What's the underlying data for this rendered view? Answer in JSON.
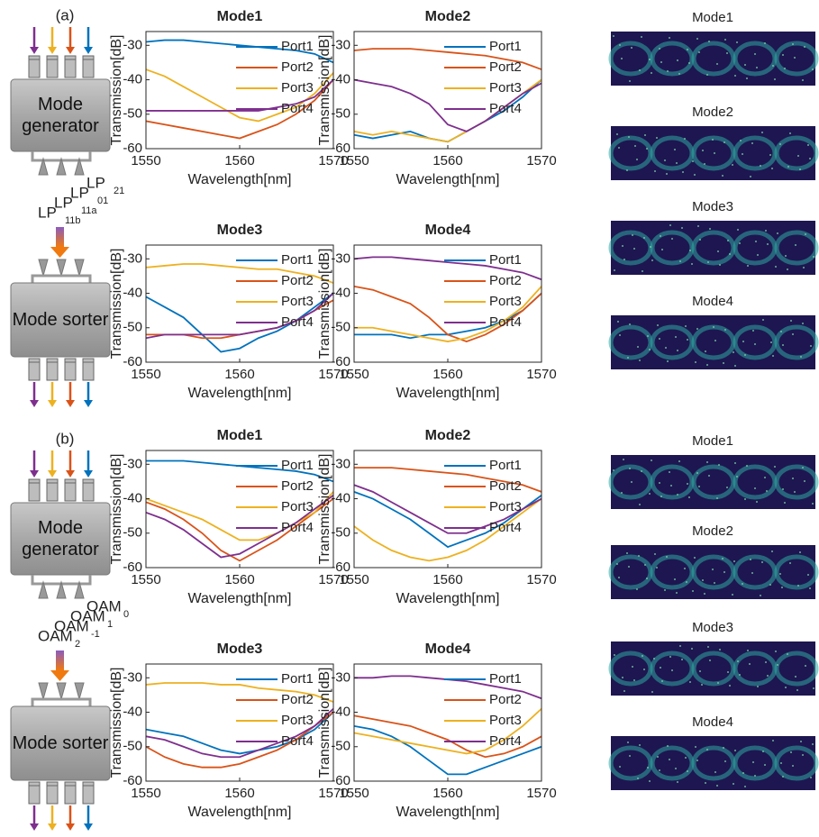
{
  "panel_labels": [
    "(a)",
    "(b)"
  ],
  "diagram": {
    "generator": "Mode generator",
    "sorter": "Mode sorter",
    "mode_labels": [
      [
        {
          "text": "LP",
          "sub": "21",
          "color": "#0072bd"
        },
        {
          "text": "LP",
          "sub": "01",
          "color": "#d95319"
        },
        {
          "text": "LP",
          "sub": "11a",
          "color": "#edb120"
        },
        {
          "text": "LP",
          "sub": "11b",
          "color": "#7e2f8e"
        }
      ],
      [
        {
          "text": "OAM",
          "sub": "0",
          "color": "#0072bd"
        },
        {
          "text": "OAM",
          "sub": "1",
          "color": "#d95319"
        },
        {
          "text": "OAM",
          "sub": "-1",
          "color": "#edb120"
        },
        {
          "text": "OAM",
          "sub": "2",
          "color": "#7e2f8e"
        }
      ]
    ]
  },
  "eye_diagrams": [
    [
      "Mode1",
      "Mode2",
      "Mode3",
      "Mode4"
    ],
    [
      "Mode1",
      "Mode2",
      "Mode3",
      "Mode4"
    ]
  ],
  "chart_data": [
    {
      "type": "line",
      "title": "Mode1",
      "x_label": "Wavelength[nm]",
      "y_label": "Transmission[dB]",
      "x": [
        1550,
        1552,
        1554,
        1556,
        1558,
        1560,
        1562,
        1564,
        1566,
        1568,
        1570
      ],
      "xlim": [
        1550,
        1570
      ],
      "ylim": [
        -60,
        -26
      ],
      "xticks": [
        1550,
        1560,
        1570
      ],
      "yticks": [
        -60,
        -50,
        -40,
        -30
      ],
      "legend": "upper right",
      "series": [
        {
          "name": "Port1",
          "color": "#0072bd",
          "values": [
            -29,
            -28.5,
            -28.5,
            -29,
            -29.5,
            -30,
            -30.5,
            -31,
            -31.5,
            -32.5,
            -35
          ]
        },
        {
          "name": "Port2",
          "color": "#d95319",
          "values": [
            -52,
            -53,
            -54,
            -55,
            -56,
            -57,
            -55,
            -53,
            -50,
            -46,
            -40
          ]
        },
        {
          "name": "Port3",
          "color": "#edb120",
          "values": [
            -37,
            -39,
            -42,
            -45,
            -48,
            -51,
            -52,
            -50,
            -48,
            -44,
            -38
          ]
        },
        {
          "name": "Port4",
          "color": "#7e2f8e",
          "values": [
            -49,
            -49,
            -49,
            -49,
            -49,
            -49,
            -49,
            -48,
            -47,
            -45,
            -40
          ]
        }
      ]
    },
    {
      "type": "line",
      "title": "Mode2",
      "x_label": "Wavelength[nm]",
      "y_label": "Transmission[dB]",
      "x": [
        1550,
        1552,
        1554,
        1556,
        1558,
        1560,
        1562,
        1564,
        1566,
        1568,
        1570
      ],
      "xlim": [
        1550,
        1570
      ],
      "ylim": [
        -60,
        -26
      ],
      "xticks": [
        1550,
        1560,
        1570
      ],
      "yticks": [
        -60,
        -50,
        -40,
        -30
      ],
      "legend": "upper right",
      "series": [
        {
          "name": "Port1",
          "color": "#0072bd",
          "values": [
            -56,
            -57,
            -56,
            -55,
            -57,
            -58,
            -55,
            -52,
            -49,
            -45,
            -40
          ]
        },
        {
          "name": "Port2",
          "color": "#d95319",
          "values": [
            -31.5,
            -31,
            -31,
            -31,
            -31.5,
            -32,
            -32.5,
            -33,
            -34,
            -35,
            -37
          ]
        },
        {
          "name": "Port3",
          "color": "#edb120",
          "values": [
            -55,
            -56,
            -55,
            -56,
            -57,
            -58,
            -55,
            -52,
            -48,
            -44,
            -40
          ]
        },
        {
          "name": "Port4",
          "color": "#7e2f8e",
          "values": [
            -40,
            -41,
            -42,
            -44,
            -47,
            -53,
            -55,
            -52,
            -48,
            -44,
            -41
          ]
        }
      ]
    },
    {
      "type": "line",
      "title": "Mode3",
      "x_label": "Wavelength[nm]",
      "y_label": "Transmission[dB]",
      "x": [
        1550,
        1552,
        1554,
        1556,
        1558,
        1560,
        1562,
        1564,
        1566,
        1568,
        1570
      ],
      "xlim": [
        1550,
        1570
      ],
      "ylim": [
        -60,
        -26
      ],
      "xticks": [
        1550,
        1560,
        1570
      ],
      "yticks": [
        -60,
        -50,
        -40,
        -30
      ],
      "legend": "upper right",
      "series": [
        {
          "name": "Port1",
          "color": "#0072bd",
          "values": [
            -41,
            -44,
            -47,
            -52,
            -57,
            -56,
            -53,
            -51,
            -48,
            -44,
            -40
          ]
        },
        {
          "name": "Port2",
          "color": "#d95319",
          "values": [
            -52,
            -52,
            -52,
            -53,
            -53,
            -52,
            -51,
            -50,
            -48,
            -45,
            -42
          ]
        },
        {
          "name": "Port3",
          "color": "#edb120",
          "values": [
            -32.5,
            -32,
            -31.5,
            -31.5,
            -32,
            -32.5,
            -33,
            -33,
            -34,
            -35,
            -37
          ]
        },
        {
          "name": "Port4",
          "color": "#7e2f8e",
          "values": [
            -53,
            -52,
            -52,
            -52,
            -52,
            -52,
            -51,
            -50,
            -48,
            -45,
            -40
          ]
        }
      ]
    },
    {
      "type": "line",
      "title": "Mode4",
      "x_label": "Wavelength[nm]",
      "y_label": "Transmission[dB]",
      "x": [
        1550,
        1552,
        1554,
        1556,
        1558,
        1560,
        1562,
        1564,
        1566,
        1568,
        1570
      ],
      "xlim": [
        1550,
        1570
      ],
      "ylim": [
        -60,
        -26
      ],
      "xticks": [
        1550,
        1560,
        1570
      ],
      "yticks": [
        -60,
        -50,
        -40,
        -30
      ],
      "legend": "upper right",
      "series": [
        {
          "name": "Port1",
          "color": "#0072bd",
          "values": [
            -52,
            -52,
            -52,
            -53,
            -52,
            -52,
            -51,
            -50,
            -48,
            -45,
            -40
          ]
        },
        {
          "name": "Port2",
          "color": "#d95319",
          "values": [
            -38,
            -39,
            -41,
            -43,
            -47,
            -52,
            -54,
            -52,
            -49,
            -45,
            -40
          ]
        },
        {
          "name": "Port3",
          "color": "#edb120",
          "values": [
            -50,
            -50,
            -51,
            -52,
            -53,
            -54,
            -53,
            -51,
            -48,
            -44,
            -38
          ]
        },
        {
          "name": "Port4",
          "color": "#7e2f8e",
          "values": [
            -30,
            -29.5,
            -29.5,
            -30,
            -30.5,
            -31,
            -31.5,
            -32,
            -33,
            -34,
            -36
          ]
        }
      ]
    },
    {
      "type": "line",
      "title": "Mode1",
      "x_label": "Wavelength[nm]",
      "y_label": "Transmission[dB]",
      "x": [
        1550,
        1552,
        1554,
        1556,
        1558,
        1560,
        1562,
        1564,
        1566,
        1568,
        1570
      ],
      "xlim": [
        1550,
        1570
      ],
      "ylim": [
        -60,
        -26
      ],
      "xticks": [
        1550,
        1560,
        1570
      ],
      "yticks": [
        -60,
        -50,
        -40,
        -30
      ],
      "legend": "upper right",
      "series": [
        {
          "name": "Port1",
          "color": "#0072bd",
          "values": [
            -29,
            -29,
            -29,
            -29.5,
            -30,
            -30.5,
            -31,
            -31.5,
            -32,
            -33,
            -35
          ]
        },
        {
          "name": "Port2",
          "color": "#d95319",
          "values": [
            -41,
            -43,
            -46,
            -50,
            -55,
            -58,
            -55,
            -52,
            -48,
            -44,
            -40
          ]
        },
        {
          "name": "Port3",
          "color": "#edb120",
          "values": [
            -40,
            -42,
            -44,
            -46,
            -49,
            -52,
            -52,
            -50,
            -47,
            -44,
            -38
          ]
        },
        {
          "name": "Port4",
          "color": "#7e2f8e",
          "values": [
            -44,
            -46,
            -49,
            -53,
            -57,
            -56,
            -53,
            -50,
            -47,
            -43,
            -39
          ]
        }
      ]
    },
    {
      "type": "line",
      "title": "Mode2",
      "x_label": "Wavelength[nm]",
      "y_label": "Transmission[dB]",
      "x": [
        1550,
        1552,
        1554,
        1556,
        1558,
        1560,
        1562,
        1564,
        1566,
        1568,
        1570
      ],
      "xlim": [
        1550,
        1570
      ],
      "ylim": [
        -60,
        -26
      ],
      "xticks": [
        1550,
        1560,
        1570
      ],
      "yticks": [
        -60,
        -50,
        -40,
        -30
      ],
      "legend": "upper right",
      "series": [
        {
          "name": "Port1",
          "color": "#0072bd",
          "values": [
            -38,
            -40,
            -43,
            -46,
            -50,
            -54,
            -52,
            -50,
            -47,
            -43,
            -39
          ]
        },
        {
          "name": "Port2",
          "color": "#d95319",
          "values": [
            -31,
            -31,
            -31,
            -31.5,
            -32,
            -32.5,
            -33,
            -34,
            -35,
            -36,
            -38
          ]
        },
        {
          "name": "Port3",
          "color": "#edb120",
          "values": [
            -48,
            -52,
            -55,
            -57,
            -58,
            -57,
            -55,
            -52,
            -48,
            -44,
            -40
          ]
        },
        {
          "name": "Port4",
          "color": "#7e2f8e",
          "values": [
            -36,
            -38,
            -41,
            -44,
            -47,
            -50,
            -50,
            -48,
            -46,
            -43,
            -40
          ]
        }
      ]
    },
    {
      "type": "line",
      "title": "Mode3",
      "x_label": "Wavelength[nm]",
      "y_label": "Transmission[dB]",
      "x": [
        1550,
        1552,
        1554,
        1556,
        1558,
        1560,
        1562,
        1564,
        1566,
        1568,
        1570
      ],
      "xlim": [
        1550,
        1570
      ],
      "ylim": [
        -60,
        -26
      ],
      "xticks": [
        1550,
        1560,
        1570
      ],
      "yticks": [
        -60,
        -50,
        -40,
        -30
      ],
      "legend": "upper right",
      "series": [
        {
          "name": "Port1",
          "color": "#0072bd",
          "values": [
            -45,
            -46,
            -47,
            -49,
            -51,
            -52,
            -51,
            -50,
            -48,
            -45,
            -40
          ]
        },
        {
          "name": "Port2",
          "color": "#d95319",
          "values": [
            -50,
            -53,
            -55,
            -56,
            -56,
            -55,
            -53,
            -51,
            -48,
            -44,
            -40
          ]
        },
        {
          "name": "Port3",
          "color": "#edb120",
          "values": [
            -32,
            -31.5,
            -31.5,
            -31.5,
            -32,
            -32,
            -33,
            -33.5,
            -34,
            -35,
            -37
          ]
        },
        {
          "name": "Port4",
          "color": "#7e2f8e",
          "values": [
            -47,
            -48,
            -50,
            -52,
            -53,
            -53,
            -51,
            -49,
            -47,
            -44,
            -39
          ]
        }
      ]
    },
    {
      "type": "line",
      "title": "Mode4",
      "x_label": "Wavelength[nm]",
      "y_label": "Transmission[dB]",
      "x": [
        1550,
        1552,
        1554,
        1556,
        1558,
        1560,
        1562,
        1564,
        1566,
        1568,
        1570
      ],
      "xlim": [
        1550,
        1570
      ],
      "ylim": [
        -60,
        -26
      ],
      "xticks": [
        1550,
        1560,
        1570
      ],
      "yticks": [
        -60,
        -50,
        -40,
        -30
      ],
      "legend": "upper right",
      "series": [
        {
          "name": "Port1",
          "color": "#0072bd",
          "values": [
            -44,
            -45,
            -47,
            -50,
            -54,
            -58,
            -58,
            -56,
            -54,
            -52,
            -50
          ]
        },
        {
          "name": "Port2",
          "color": "#d95319",
          "values": [
            -41,
            -42,
            -43,
            -44,
            -46,
            -48,
            -51,
            -53,
            -52,
            -50,
            -47
          ]
        },
        {
          "name": "Port3",
          "color": "#edb120",
          "values": [
            -46,
            -47,
            -48,
            -49,
            -50,
            -51,
            -52,
            -51,
            -48,
            -44,
            -39
          ]
        },
        {
          "name": "Port4",
          "color": "#7e2f8e",
          "values": [
            -30,
            -30,
            -29.5,
            -29.5,
            -30,
            -30.5,
            -31,
            -32,
            -33,
            -34,
            -36
          ]
        }
      ]
    }
  ]
}
